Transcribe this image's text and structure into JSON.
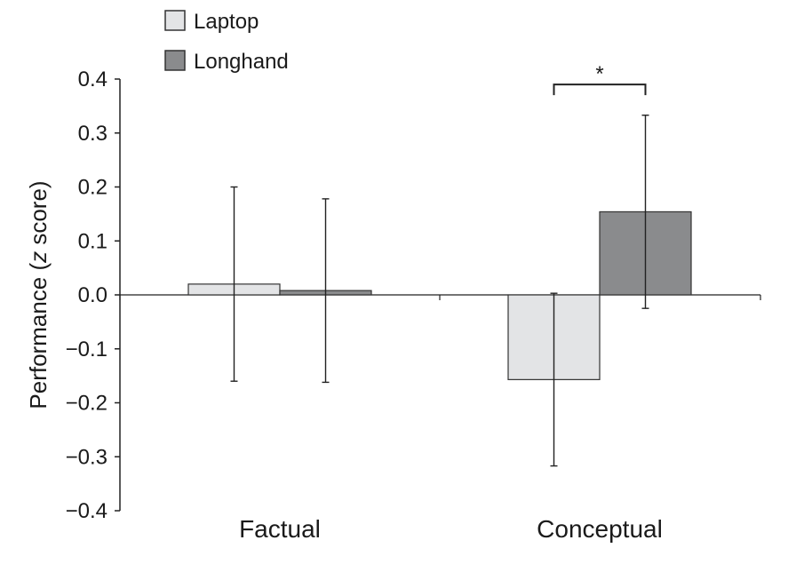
{
  "chart_data": {
    "type": "bar",
    "title": "",
    "xlabel": "",
    "ylabel": "Performance (z score)",
    "ylabel_parts": [
      "Performance (",
      "z",
      " score)"
    ],
    "ylim": [
      -0.4,
      0.4
    ],
    "yticks": [
      0.4,
      0.3,
      0.2,
      0.1,
      0.0,
      -0.1,
      -0.2,
      -0.3,
      -0.4
    ],
    "ytick_labels": [
      "0.4",
      "0.3",
      "0.2",
      "0.1",
      "0.0",
      "−0.1",
      "−0.2",
      "−0.3",
      "−0.4"
    ],
    "categories": [
      "Factual",
      "Conceptual"
    ],
    "series": [
      {
        "name": "Laptop",
        "color": "#e3e4e6",
        "values": [
          0.02,
          -0.157
        ],
        "error_low": [
          -0.16,
          -0.317
        ],
        "error_high": [
          0.2,
          0.003
        ]
      },
      {
        "name": "Longhand",
        "color": "#8a8b8d",
        "values": [
          0.008,
          0.154
        ],
        "error_low": [
          -0.162,
          -0.025
        ],
        "error_high": [
          0.178,
          0.333
        ]
      }
    ],
    "legend_position": "top-left",
    "grid": false,
    "annotations": [
      {
        "text": "*",
        "type": "significance-bracket",
        "category": "Conceptual",
        "between": [
          "Laptop",
          "Longhand"
        ],
        "y": 0.39
      }
    ]
  }
}
